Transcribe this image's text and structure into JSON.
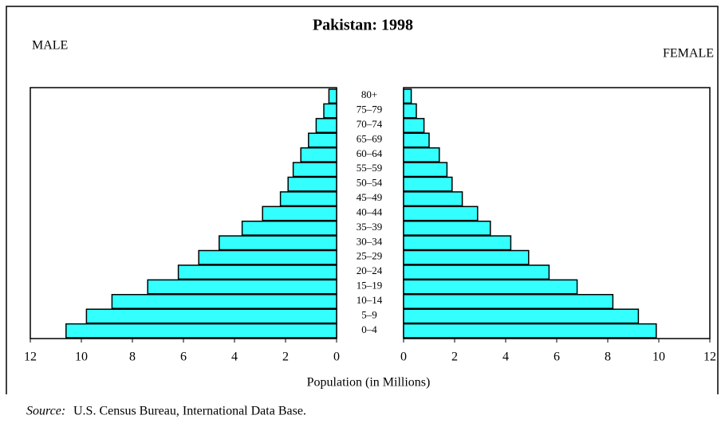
{
  "chart_data": {
    "type": "pyramid",
    "title": "Pakistan: 1998",
    "categories": [
      "0–4",
      "5–9",
      "10–14",
      "15–19",
      "20–24",
      "25–29",
      "30–34",
      "35–39",
      "40–44",
      "45–49",
      "50–54",
      "55–59",
      "60–64",
      "65–69",
      "70–74",
      "75–79",
      "80+"
    ],
    "series": [
      {
        "name": "MALE",
        "color": "#33ffff",
        "values": [
          10.6,
          9.8,
          8.8,
          7.4,
          6.2,
          5.4,
          4.6,
          3.7,
          2.9,
          2.2,
          1.9,
          1.7,
          1.4,
          1.1,
          0.8,
          0.5,
          0.3
        ]
      },
      {
        "name": "FEMALE",
        "color": "#33ffff",
        "values": [
          9.9,
          9.2,
          8.2,
          6.8,
          5.7,
          4.9,
          4.2,
          3.4,
          2.9,
          2.3,
          1.9,
          1.7,
          1.4,
          1.0,
          0.8,
          0.5,
          0.3
        ]
      }
    ],
    "xlim": [
      0,
      12
    ],
    "xticks": [
      0,
      2,
      4,
      6,
      8,
      10,
      12
    ],
    "xlabel": "Population (in Millions)",
    "source_label": "Source:",
    "source_text": "U.S. Census Bureau, International Data Base."
  }
}
